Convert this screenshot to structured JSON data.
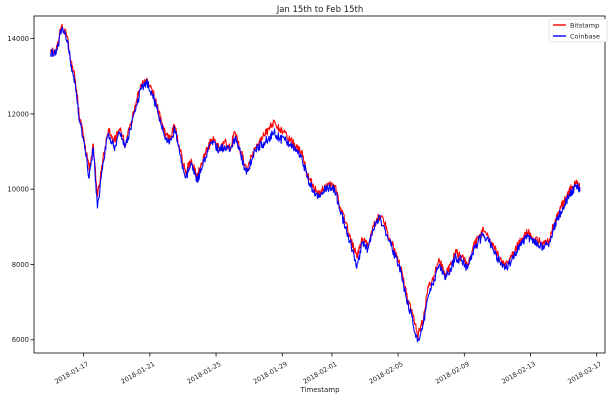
{
  "chart_data": {
    "type": "line",
    "title": "Jan 15th to Feb 15th",
    "xlabel": "Timestamp",
    "ylabel": "",
    "x_ticks": [
      "2018-01-17",
      "2018-01-21",
      "2018-01-25",
      "2018-01-29",
      "2018-02-01",
      "2018-02-05",
      "2018-02-09",
      "2018-02-13",
      "2018-02-17"
    ],
    "y_ticks": [
      "6000",
      "8000",
      "10000",
      "12000",
      "14000"
    ],
    "xlim": [
      "2018-01-14T00:00",
      "2018-02-17T12:00"
    ],
    "ylim": [
      5650,
      14600
    ],
    "grid": false,
    "legend_position": "top-right",
    "colors": {
      "Bitstamp": "#ff0000",
      "Coinbase": "#0000ff"
    },
    "series": [
      {
        "name": "Bitstamp",
        "color": "#ff0000",
        "points": [
          [
            "2018-01-15T00:00",
            13700
          ],
          [
            "2018-01-15T08:00",
            13650
          ],
          [
            "2018-01-15T16:00",
            14350
          ],
          [
            "2018-01-16T00:00",
            14050
          ],
          [
            "2018-01-16T06:00",
            13400
          ],
          [
            "2018-01-16T12:00",
            12900
          ],
          [
            "2018-01-16T18:00",
            11900
          ],
          [
            "2018-01-17T00:00",
            11400
          ],
          [
            "2018-01-17T08:00",
            10500
          ],
          [
            "2018-01-17T14:00",
            11200
          ],
          [
            "2018-01-17T20:00",
            9800
          ],
          [
            "2018-01-18T04:00",
            10800
          ],
          [
            "2018-01-18T12:00",
            11600
          ],
          [
            "2018-01-18T20:00",
            11250
          ],
          [
            "2018-01-19T04:00",
            11600
          ],
          [
            "2018-01-19T12:00",
            11200
          ],
          [
            "2018-01-19T20:00",
            11700
          ],
          [
            "2018-01-20T04:00",
            12300
          ],
          [
            "2018-01-20T12:00",
            12800
          ],
          [
            "2018-01-20T20:00",
            12950
          ],
          [
            "2018-01-21T04:00",
            12600
          ],
          [
            "2018-01-21T12:00",
            12100
          ],
          [
            "2018-01-21T20:00",
            11600
          ],
          [
            "2018-01-22T04:00",
            11300
          ],
          [
            "2018-01-22T12:00",
            11700
          ],
          [
            "2018-01-22T20:00",
            11000
          ],
          [
            "2018-01-23T04:00",
            10400
          ],
          [
            "2018-01-23T12:00",
            10800
          ],
          [
            "2018-01-23T20:00",
            10300
          ],
          [
            "2018-01-24T04:00",
            10700
          ],
          [
            "2018-01-24T12:00",
            11100
          ],
          [
            "2018-01-24T20:00",
            11400
          ],
          [
            "2018-01-25T04:00",
            11100
          ],
          [
            "2018-01-25T12:00",
            11250
          ],
          [
            "2018-01-25T20:00",
            11100
          ],
          [
            "2018-01-26T04:00",
            11500
          ],
          [
            "2018-01-26T12:00",
            11000
          ],
          [
            "2018-01-26T20:00",
            10500
          ],
          [
            "2018-01-27T04:00",
            10900
          ],
          [
            "2018-01-27T12:00",
            11200
          ],
          [
            "2018-01-27T20:00",
            11400
          ],
          [
            "2018-01-28T04:00",
            11600
          ],
          [
            "2018-01-28T12:00",
            11800
          ],
          [
            "2018-01-28T20:00",
            11600
          ],
          [
            "2018-01-29T04:00",
            11500
          ],
          [
            "2018-01-29T12:00",
            11300
          ],
          [
            "2018-01-29T20:00",
            11100
          ],
          [
            "2018-01-30T04:00",
            11000
          ],
          [
            "2018-01-30T12:00",
            10400
          ],
          [
            "2018-01-30T20:00",
            10100
          ],
          [
            "2018-01-31T04:00",
            9900
          ],
          [
            "2018-01-31T12:00",
            10000
          ],
          [
            "2018-01-31T20:00",
            10150
          ],
          [
            "2018-02-01T04:00",
            10100
          ],
          [
            "2018-02-01T12:00",
            9500
          ],
          [
            "2018-02-01T20:00",
            9100
          ],
          [
            "2018-02-02T04:00",
            8600
          ],
          [
            "2018-02-02T12:00",
            8200
          ],
          [
            "2018-02-02T20:00",
            8700
          ],
          [
            "2018-02-03T04:00",
            8500
          ],
          [
            "2018-02-03T12:00",
            9000
          ],
          [
            "2018-02-03T20:00",
            9300
          ],
          [
            "2018-02-04T04:00",
            9100
          ],
          [
            "2018-02-04T12:00",
            8700
          ],
          [
            "2018-02-04T20:00",
            8300
          ],
          [
            "2018-02-05T04:00",
            7900
          ],
          [
            "2018-02-05T12:00",
            7200
          ],
          [
            "2018-02-05T20:00",
            6800
          ],
          [
            "2018-02-06T04:00",
            6100
          ],
          [
            "2018-02-06T12:00",
            6500
          ],
          [
            "2018-02-06T20:00",
            7400
          ],
          [
            "2018-02-07T04:00",
            7700
          ],
          [
            "2018-02-07T12:00",
            8100
          ],
          [
            "2018-02-07T20:00",
            7700
          ],
          [
            "2018-02-08T04:00",
            8000
          ],
          [
            "2018-02-08T12:00",
            8300
          ],
          [
            "2018-02-08T20:00",
            8200
          ],
          [
            "2018-02-09T04:00",
            8000
          ],
          [
            "2018-02-09T12:00",
            8400
          ],
          [
            "2018-02-09T20:00",
            8700
          ],
          [
            "2018-02-10T04:00",
            8900
          ],
          [
            "2018-02-10T12:00",
            8700
          ],
          [
            "2018-02-10T20:00",
            8400
          ],
          [
            "2018-02-11T04:00",
            8150
          ],
          [
            "2018-02-11T12:00",
            8000
          ],
          [
            "2018-02-11T20:00",
            8200
          ],
          [
            "2018-02-12T04:00",
            8450
          ],
          [
            "2018-02-12T12:00",
            8700
          ],
          [
            "2018-02-12T20:00",
            8850
          ],
          [
            "2018-02-13T04:00",
            8700
          ],
          [
            "2018-02-13T12:00",
            8600
          ],
          [
            "2018-02-13T20:00",
            8550
          ],
          [
            "2018-02-14T04:00",
            8700
          ],
          [
            "2018-02-14T12:00",
            9200
          ],
          [
            "2018-02-14T20:00",
            9500
          ],
          [
            "2018-02-15T04:00",
            9800
          ],
          [
            "2018-02-15T12:00",
            10050
          ],
          [
            "2018-02-15T20:00",
            10150
          ],
          [
            "2018-02-16T00:00",
            10000
          ]
        ]
      },
      {
        "name": "Coinbase",
        "color": "#0000ff",
        "points": [
          [
            "2018-01-15T00:00",
            13600
          ],
          [
            "2018-01-15T08:00",
            13600
          ],
          [
            "2018-01-15T16:00",
            14250
          ],
          [
            "2018-01-16T00:00",
            13950
          ],
          [
            "2018-01-16T06:00",
            13300
          ],
          [
            "2018-01-16T12:00",
            12800
          ],
          [
            "2018-01-16T18:00",
            11800
          ],
          [
            "2018-01-17T00:00",
            11300
          ],
          [
            "2018-01-17T08:00",
            10300
          ],
          [
            "2018-01-17T14:00",
            11100
          ],
          [
            "2018-01-17T20:00",
            9500
          ],
          [
            "2018-01-18T04:00",
            10700
          ],
          [
            "2018-01-18T12:00",
            11500
          ],
          [
            "2018-01-18T20:00",
            11100
          ],
          [
            "2018-01-19T04:00",
            11500
          ],
          [
            "2018-01-19T12:00",
            11100
          ],
          [
            "2018-01-19T20:00",
            11600
          ],
          [
            "2018-01-20T04:00",
            12200
          ],
          [
            "2018-01-20T12:00",
            12700
          ],
          [
            "2018-01-20T20:00",
            12850
          ],
          [
            "2018-01-21T04:00",
            12500
          ],
          [
            "2018-01-21T12:00",
            12000
          ],
          [
            "2018-01-21T20:00",
            11500
          ],
          [
            "2018-01-22T04:00",
            11200
          ],
          [
            "2018-01-22T12:00",
            11600
          ],
          [
            "2018-01-22T20:00",
            10900
          ],
          [
            "2018-01-23T04:00",
            10300
          ],
          [
            "2018-01-23T12:00",
            10700
          ],
          [
            "2018-01-23T20:00",
            10200
          ],
          [
            "2018-01-24T04:00",
            10600
          ],
          [
            "2018-01-24T12:00",
            11000
          ],
          [
            "2018-01-24T20:00",
            11300
          ],
          [
            "2018-01-25T04:00",
            11000
          ],
          [
            "2018-01-25T12:00",
            11150
          ],
          [
            "2018-01-25T20:00",
            11000
          ],
          [
            "2018-01-26T04:00",
            11400
          ],
          [
            "2018-01-26T12:00",
            10900
          ],
          [
            "2018-01-26T20:00",
            10400
          ],
          [
            "2018-01-27T04:00",
            10800
          ],
          [
            "2018-01-27T12:00",
            11100
          ],
          [
            "2018-01-27T20:00",
            11200
          ],
          [
            "2018-01-28T04:00",
            11350
          ],
          [
            "2018-01-28T12:00",
            11500
          ],
          [
            "2018-01-28T20:00",
            11350
          ],
          [
            "2018-01-29T04:00",
            11300
          ],
          [
            "2018-01-29T12:00",
            11150
          ],
          [
            "2018-01-29T20:00",
            11000
          ],
          [
            "2018-01-30T04:00",
            10900
          ],
          [
            "2018-01-30T12:00",
            10300
          ],
          [
            "2018-01-30T20:00",
            10000
          ],
          [
            "2018-01-31T04:00",
            9800
          ],
          [
            "2018-01-31T12:00",
            9950
          ],
          [
            "2018-01-31T20:00",
            10050
          ],
          [
            "2018-02-01T04:00",
            10000
          ],
          [
            "2018-02-01T12:00",
            9400
          ],
          [
            "2018-02-01T20:00",
            9000
          ],
          [
            "2018-02-02T04:00",
            8500
          ],
          [
            "2018-02-02T12:00",
            7900
          ],
          [
            "2018-02-02T20:00",
            8600
          ],
          [
            "2018-02-03T04:00",
            8400
          ],
          [
            "2018-02-03T12:00",
            8900
          ],
          [
            "2018-02-03T20:00",
            9250
          ],
          [
            "2018-02-04T04:00",
            9000
          ],
          [
            "2018-02-04T12:00",
            8600
          ],
          [
            "2018-02-04T20:00",
            8200
          ],
          [
            "2018-02-05T04:00",
            7800
          ],
          [
            "2018-02-05T12:00",
            7100
          ],
          [
            "2018-02-05T20:00",
            6600
          ],
          [
            "2018-02-06T04:00",
            5950
          ],
          [
            "2018-02-06T12:00",
            6400
          ],
          [
            "2018-02-06T20:00",
            7200
          ],
          [
            "2018-02-07T04:00",
            7600
          ],
          [
            "2018-02-07T12:00",
            8000
          ],
          [
            "2018-02-07T20:00",
            7600
          ],
          [
            "2018-02-08T04:00",
            7900
          ],
          [
            "2018-02-08T12:00",
            8200
          ],
          [
            "2018-02-08T20:00",
            8100
          ],
          [
            "2018-02-09T04:00",
            7900
          ],
          [
            "2018-02-09T12:00",
            8300
          ],
          [
            "2018-02-09T20:00",
            8600
          ],
          [
            "2018-02-10T04:00",
            8800
          ],
          [
            "2018-02-10T12:00",
            8600
          ],
          [
            "2018-02-10T20:00",
            8300
          ],
          [
            "2018-02-11T04:00",
            8050
          ],
          [
            "2018-02-11T12:00",
            7900
          ],
          [
            "2018-02-11T20:00",
            8100
          ],
          [
            "2018-02-12T04:00",
            8350
          ],
          [
            "2018-02-12T12:00",
            8600
          ],
          [
            "2018-02-12T20:00",
            8750
          ],
          [
            "2018-02-13T04:00",
            8600
          ],
          [
            "2018-02-13T12:00",
            8500
          ],
          [
            "2018-02-13T20:00",
            8450
          ],
          [
            "2018-02-14T04:00",
            8600
          ],
          [
            "2018-02-14T12:00",
            9100
          ],
          [
            "2018-02-14T20:00",
            9400
          ],
          [
            "2018-02-15T04:00",
            9700
          ],
          [
            "2018-02-15T12:00",
            9950
          ],
          [
            "2018-02-15T20:00",
            10100
          ],
          [
            "2018-02-16T00:00",
            9950
          ]
        ]
      }
    ]
  }
}
